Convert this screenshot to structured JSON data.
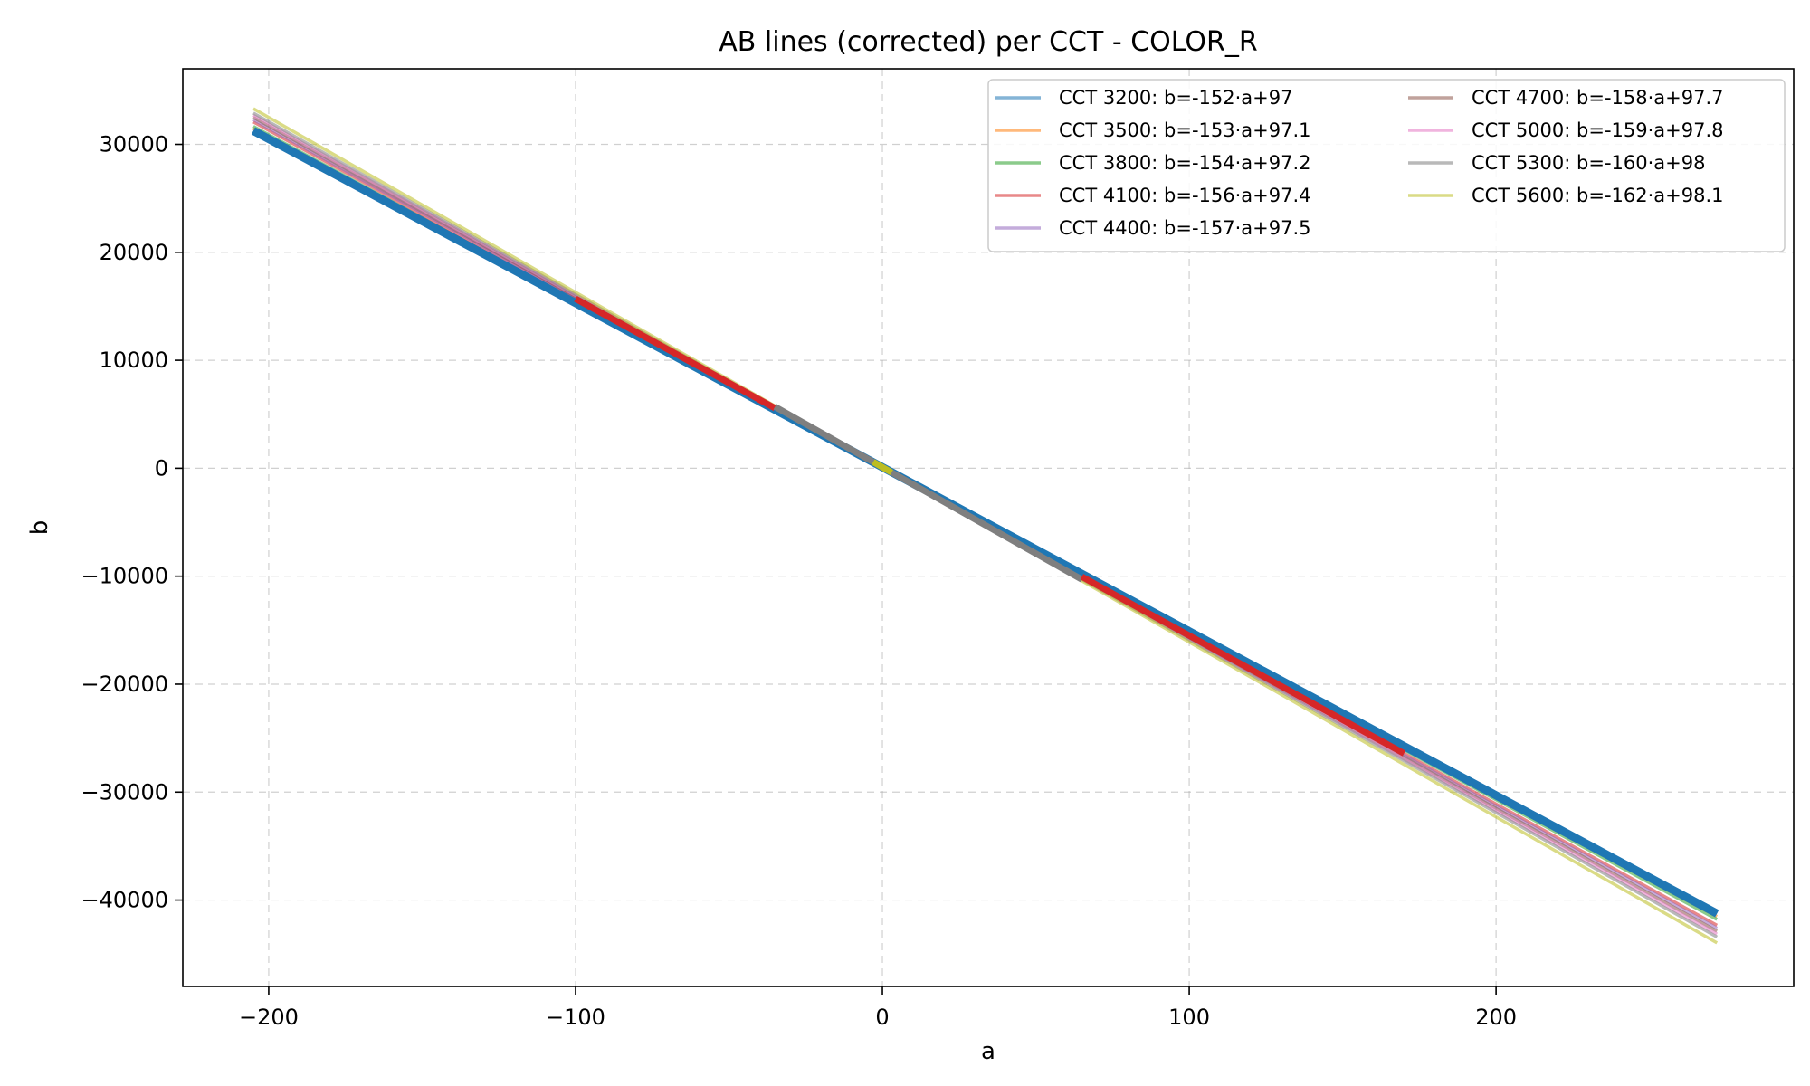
{
  "chart_data": {
    "type": "line",
    "title": "AB lines (corrected) per CCT - COLOR_R",
    "xlabel": "a",
    "ylabel": "b",
    "xlim": [
      -228,
      297
    ],
    "ylim": [
      -48000,
      37000
    ],
    "xticks": [
      -200,
      -100,
      0,
      100,
      200
    ],
    "yticks": [
      30000,
      20000,
      10000,
      0,
      -10000,
      -20000,
      -30000,
      -40000
    ],
    "xtick_labels": [
      "−200",
      "−100",
      "0",
      "100",
      "200"
    ],
    "ytick_labels": [
      "30000",
      "20000",
      "10000",
      "0",
      "−10000",
      "−20000",
      "−30000",
      "−40000"
    ],
    "grid": true,
    "legend_position": "top-right",
    "legend_columns": 2,
    "series": [
      {
        "name": "CCT 3200: b=-152·a+97",
        "color": "#1f77b4",
        "slope": -152,
        "intercept": 97,
        "x": [
          -205,
          272
        ]
      },
      {
        "name": "CCT 3500: b=-153·a+97.1",
        "color": "#ff7f0e",
        "slope": -153,
        "intercept": 97.1,
        "x": [
          -205,
          272
        ]
      },
      {
        "name": "CCT 3800: b=-154·a+97.2",
        "color": "#2ca02c",
        "slope": -154,
        "intercept": 97.2,
        "x": [
          -205,
          272
        ]
      },
      {
        "name": "CCT 4100: b=-156·a+97.4",
        "color": "#d62728",
        "slope": -156,
        "intercept": 97.4,
        "x": [
          -205,
          272
        ]
      },
      {
        "name": "CCT 4400: b=-157·a+97.5",
        "color": "#9467bd",
        "slope": -157,
        "intercept": 97.5,
        "x": [
          -205,
          272
        ]
      },
      {
        "name": "CCT 4700: b=-158·a+97.7",
        "color": "#8c564b",
        "slope": -158,
        "intercept": 97.7,
        "x": [
          -205,
          272
        ]
      },
      {
        "name": "CCT 5000: b=-159·a+97.8",
        "color": "#e377c2",
        "slope": -159,
        "intercept": 97.8,
        "x": [
          -205,
          272
        ]
      },
      {
        "name": "CCT 5300: b=-160·a+98",
        "color": "#7f7f7f",
        "slope": -160,
        "intercept": 98,
        "x": [
          -205,
          272
        ]
      },
      {
        "name": "CCT 5600: b=-162·a+98.1",
        "color": "#bcbd22",
        "slope": -162,
        "intercept": 98.1,
        "x": [
          -205,
          272
        ]
      }
    ],
    "highlight_segments": [
      {
        "color": "#1f77b4",
        "slope": -152,
        "intercept": 97,
        "x": [
          -205,
          272
        ]
      },
      {
        "color": "#d62728",
        "slope": -156,
        "intercept": 97.4,
        "x": [
          -100,
          -35
        ]
      },
      {
        "color": "#7f7f7f",
        "slope": -160,
        "intercept": 98,
        "x": [
          -35,
          65
        ]
      },
      {
        "color": "#d62728",
        "slope": -156,
        "intercept": 97.4,
        "x": [
          65,
          170
        ]
      },
      {
        "color": "#bcbd22",
        "slope": -162,
        "intercept": 98.1,
        "x": [
          -3,
          3
        ]
      }
    ]
  }
}
